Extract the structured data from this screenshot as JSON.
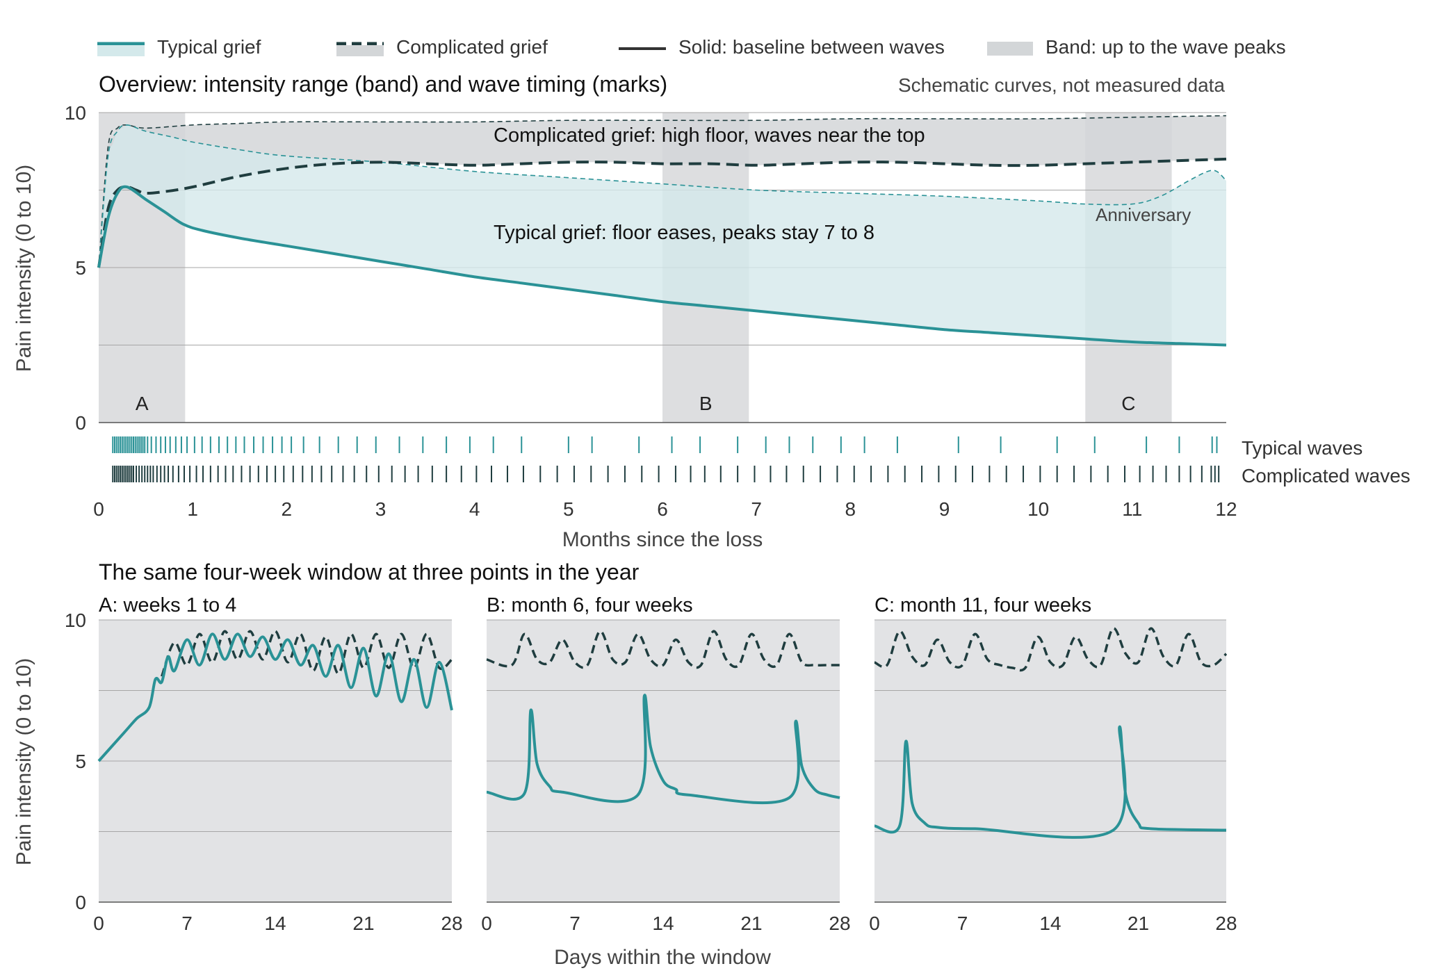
{
  "legend": {
    "typical": "Typical grief",
    "complicated": "Complicated grief",
    "solid": "Solid: baseline between waves",
    "band": "Band: up to the wave peaks"
  },
  "colors": {
    "typical": "#2a9296",
    "typical_band": "#d4e9eb",
    "complicated": "#1f3d3f",
    "complicated_band": "#d3d6d8",
    "window_shade": "#a9adb2",
    "panel_bg": "#e2e3e5",
    "gridline": "#a6a6a6",
    "text": "#222222"
  },
  "chart_data": [
    {
      "id": "overview",
      "type": "area",
      "title": "Overview: intensity range (band) and wave timing (marks)",
      "note": "Schematic curves, not measured data",
      "xlabel": "Months since the loss",
      "ylabel": "Pain intensity (0 to 10)",
      "xlim": [
        0,
        12
      ],
      "ylim": [
        0,
        10
      ],
      "x_ticks": [
        0,
        1,
        2,
        3,
        4,
        5,
        6,
        7,
        8,
        9,
        10,
        11,
        12
      ],
      "y_ticks": [
        0,
        5,
        10
      ],
      "grid": "horizontal",
      "annotations": {
        "complicated": "Complicated grief: high floor, waves near the top",
        "typical": "Typical grief: floor eases, peaks stay 7 to 8",
        "anniversary": "Anniversary"
      },
      "windows": [
        {
          "label": "A",
          "start": 0,
          "end": 0.92
        },
        {
          "label": "B",
          "start": 6.0,
          "end": 6.92
        },
        {
          "label": "C",
          "start": 10.5,
          "end": 11.42
        }
      ],
      "series": [
        {
          "name": "Typical grief",
          "baseline": {
            "x": [
              0,
              0.1,
              0.2,
              0.3,
              0.5,
              0.7,
              0.9,
              1.1,
              1.5,
              2,
              2.5,
              3,
              3.5,
              4,
              4.5,
              5,
              5.5,
              6,
              6.5,
              7,
              7.5,
              8,
              8.5,
              9,
              9.5,
              10,
              10.5,
              11,
              11.5,
              12
            ],
            "y": [
              5.0,
              6.6,
              7.4,
              7.6,
              7.2,
              6.8,
              6.4,
              6.2,
              5.95,
              5.7,
              5.45,
              5.2,
              4.95,
              4.7,
              4.5,
              4.3,
              4.1,
              3.9,
              3.75,
              3.6,
              3.45,
              3.3,
              3.15,
              3.0,
              2.9,
              2.8,
              2.7,
              2.6,
              2.55,
              2.5
            ]
          },
          "peaks": {
            "x": [
              0,
              0.1,
              0.2,
              0.3,
              0.5,
              0.8,
              1.0,
              1.5,
              2,
              3,
              4,
              5,
              6,
              7,
              8,
              9,
              10,
              10.5,
              11,
              11.3,
              11.6,
              11.8,
              11.9,
              12
            ],
            "y": [
              5.0,
              8.6,
              9.4,
              9.6,
              9.4,
              9.2,
              9.05,
              8.8,
              8.6,
              8.4,
              8.1,
              7.9,
              7.7,
              7.5,
              7.4,
              7.3,
              7.15,
              7.05,
              7.05,
              7.3,
              7.8,
              8.1,
              8.1,
              7.8
            ]
          },
          "waves": [
            0.15,
            0.17,
            0.19,
            0.21,
            0.23,
            0.25,
            0.27,
            0.29,
            0.31,
            0.33,
            0.35,
            0.37,
            0.39,
            0.41,
            0.43,
            0.45,
            0.47,
            0.49,
            0.52,
            0.56,
            0.61,
            0.66,
            0.71,
            0.76,
            0.82,
            0.88,
            0.94,
            1.02,
            1.1,
            1.19,
            1.28,
            1.37,
            1.46,
            1.55,
            1.65,
            1.75,
            1.85,
            1.95,
            2.05,
            2.18,
            2.35,
            2.55,
            2.75,
            2.95,
            3.2,
            3.45,
            3.7,
            3.95,
            4.2,
            4.5,
            5.0,
            5.25,
            5.75,
            6.1,
            6.4,
            6.8,
            7.1,
            7.35,
            7.6,
            7.9,
            8.15,
            8.5,
            9.15,
            9.6,
            10.2,
            10.6,
            11.15,
            11.5,
            11.85,
            11.9
          ]
        },
        {
          "name": "Complicated grief",
          "baseline": {
            "x": [
              0,
              0.1,
              0.2,
              0.3,
              0.4,
              0.5,
              0.7,
              1.0,
              1.5,
              2.0,
              2.5,
              3.0,
              3.5,
              4.0,
              4.5,
              5.0,
              5.5,
              6.0,
              6.5,
              7.0,
              7.5,
              8.0,
              8.5,
              9.0,
              9.5,
              10.0,
              10.5,
              11.0,
              11.5,
              12.0
            ],
            "y": [
              5.0,
              6.9,
              7.5,
              7.6,
              7.5,
              7.4,
              7.45,
              7.6,
              7.95,
              8.2,
              8.35,
              8.4,
              8.35,
              8.3,
              8.35,
              8.4,
              8.4,
              8.35,
              8.35,
              8.3,
              8.35,
              8.4,
              8.4,
              8.35,
              8.3,
              8.3,
              8.35,
              8.4,
              8.45,
              8.5
            ]
          },
          "peaks": {
            "x": [
              0,
              0.1,
              0.2,
              0.3,
              0.5,
              1.0,
              1.5,
              2,
              3,
              4,
              5,
              6,
              7,
              8,
              9,
              10,
              11,
              12
            ],
            "y": [
              5.0,
              8.9,
              9.5,
              9.6,
              9.5,
              9.6,
              9.65,
              9.7,
              9.7,
              9.7,
              9.75,
              9.75,
              9.75,
              9.8,
              9.8,
              9.8,
              9.85,
              9.9
            ]
          },
          "waves": [
            0.15,
            0.17,
            0.19,
            0.21,
            0.23,
            0.25,
            0.27,
            0.29,
            0.31,
            0.33,
            0.35,
            0.37,
            0.4,
            0.43,
            0.46,
            0.49,
            0.52,
            0.55,
            0.58,
            0.62,
            0.66,
            0.7,
            0.74,
            0.79,
            0.85,
            0.91,
            0.97,
            1.04,
            1.11,
            1.19,
            1.27,
            1.35,
            1.43,
            1.52,
            1.61,
            1.7,
            1.79,
            1.88,
            1.97,
            2.07,
            2.17,
            2.27,
            2.37,
            2.48,
            2.6,
            2.72,
            2.85,
            2.98,
            3.12,
            3.26,
            3.4,
            3.55,
            3.7,
            3.86,
            4.02,
            4.18,
            4.35,
            4.52,
            4.7,
            4.88,
            5.06,
            5.24,
            5.42,
            5.6,
            5.78,
            5.96,
            6.14,
            6.3,
            6.45,
            6.62,
            6.8,
            6.98,
            7.15,
            7.32,
            7.5,
            7.68,
            7.86,
            8.04,
            8.22,
            8.4,
            8.58,
            8.76,
            8.94,
            9.12,
            9.3,
            9.48,
            9.66,
            9.84,
            10.02,
            10.2,
            10.38,
            10.56,
            10.74,
            10.92,
            11.08,
            11.22,
            11.36,
            11.5,
            11.62,
            11.74,
            11.84,
            11.88,
            11.92
          ]
        }
      ],
      "rug_labels": {
        "typical": "Typical waves",
        "complicated": "Complicated waves"
      }
    },
    {
      "id": "windows",
      "type": "line",
      "title": "The same four-week window at three points in the year",
      "xlabel": "Days within the window",
      "ylabel": "Pain intensity (0 to 10)",
      "xlim": [
        0,
        28
      ],
      "ylim": [
        0,
        10
      ],
      "x_ticks": [
        0,
        7,
        14,
        21,
        28
      ],
      "y_ticks": [
        0,
        5,
        10
      ],
      "panels": [
        {
          "label": "A: weeks 1 to 4",
          "typical": {
            "x": [
              0,
              2,
              3,
              4,
              4.5,
              5,
              5.5,
              6,
              7,
              8,
              9,
              10,
              11,
              12,
              13,
              14,
              15,
              16,
              17,
              18,
              19,
              20,
              21,
              22,
              23,
              24,
              25,
              26,
              27,
              28
            ],
            "y": [
              5.0,
              6.0,
              6.5,
              6.9,
              7.9,
              7.8,
              8.7,
              8.2,
              9.3,
              8.4,
              9.5,
              8.6,
              9.5,
              8.7,
              9.4,
              8.6,
              9.3,
              8.4,
              9.1,
              8.0,
              9.1,
              7.6,
              9.0,
              7.3,
              8.8,
              7.1,
              8.6,
              6.9,
              8.5,
              6.8
            ]
          },
          "complicated": {
            "x": [
              5,
              6,
              7,
              8,
              9,
              10,
              11,
              12,
              13,
              14,
              15,
              16,
              17,
              18,
              19,
              20,
              21,
              22,
              23,
              24,
              25,
              26,
              27,
              28
            ],
            "y": [
              8.0,
              9.2,
              8.4,
              9.5,
              8.5,
              9.6,
              8.6,
              9.6,
              8.6,
              9.6,
              8.5,
              9.5,
              8.2,
              9.4,
              8.1,
              9.5,
              8.3,
              9.5,
              8.3,
              9.5,
              8.3,
              9.5,
              8.3,
              8.6
            ]
          }
        },
        {
          "label": "B: month 6, four weeks",
          "typical": {
            "x": [
              0,
              3,
              3.5,
              4,
              5,
              6,
              12,
              12.5,
              13,
              14,
              15,
              16,
              24,
              24.5,
              25,
              26,
              27,
              28
            ],
            "y": [
              3.9,
              3.85,
              6.8,
              4.9,
              4.1,
              3.9,
              3.8,
              7.3,
              5.5,
              4.3,
              4.0,
              3.8,
              3.7,
              6.4,
              4.8,
              4.0,
              3.8,
              3.7
            ]
          },
          "complicated": {
            "x": [
              0,
              2,
              3,
              4,
              5,
              6,
              7,
              8,
              9,
              10,
              11,
              12,
              13,
              14,
              15,
              16,
              17,
              18,
              19,
              20,
              21,
              22,
              23,
              24,
              25,
              26,
              27,
              28
            ],
            "y": [
              8.6,
              8.4,
              9.5,
              8.6,
              8.5,
              9.3,
              8.5,
              8.4,
              9.6,
              8.6,
              8.5,
              9.5,
              8.6,
              8.4,
              9.3,
              8.5,
              8.4,
              9.6,
              8.6,
              8.4,
              9.5,
              8.6,
              8.4,
              9.5,
              8.5,
              8.4,
              8.4,
              8.4
            ]
          }
        },
        {
          "label": "C: month 11, four weeks",
          "typical": {
            "x": [
              0,
              2,
              2.5,
              3,
              4,
              5,
              8,
              19,
              19.5,
              20,
              21,
              22,
              28
            ],
            "y": [
              2.7,
              2.7,
              5.7,
              3.5,
              2.8,
              2.65,
              2.6,
              2.55,
              6.2,
              3.8,
              2.8,
              2.6,
              2.55
            ]
          },
          "complicated": {
            "x": [
              0,
              1,
              2,
              3,
              4,
              5,
              6,
              7,
              8,
              9,
              10,
              11,
              12,
              13,
              14,
              15,
              16,
              17,
              18,
              19,
              20,
              21,
              22,
              23,
              24,
              25,
              26,
              27,
              28
            ],
            "y": [
              8.5,
              8.4,
              9.6,
              8.7,
              8.4,
              9.3,
              8.5,
              8.4,
              9.5,
              8.6,
              8.4,
              8.3,
              8.3,
              9.4,
              8.5,
              8.4,
              9.4,
              8.6,
              8.4,
              9.7,
              8.8,
              8.5,
              9.7,
              8.7,
              8.4,
              9.5,
              8.5,
              8.4,
              8.8
            ]
          }
        }
      ]
    }
  ]
}
